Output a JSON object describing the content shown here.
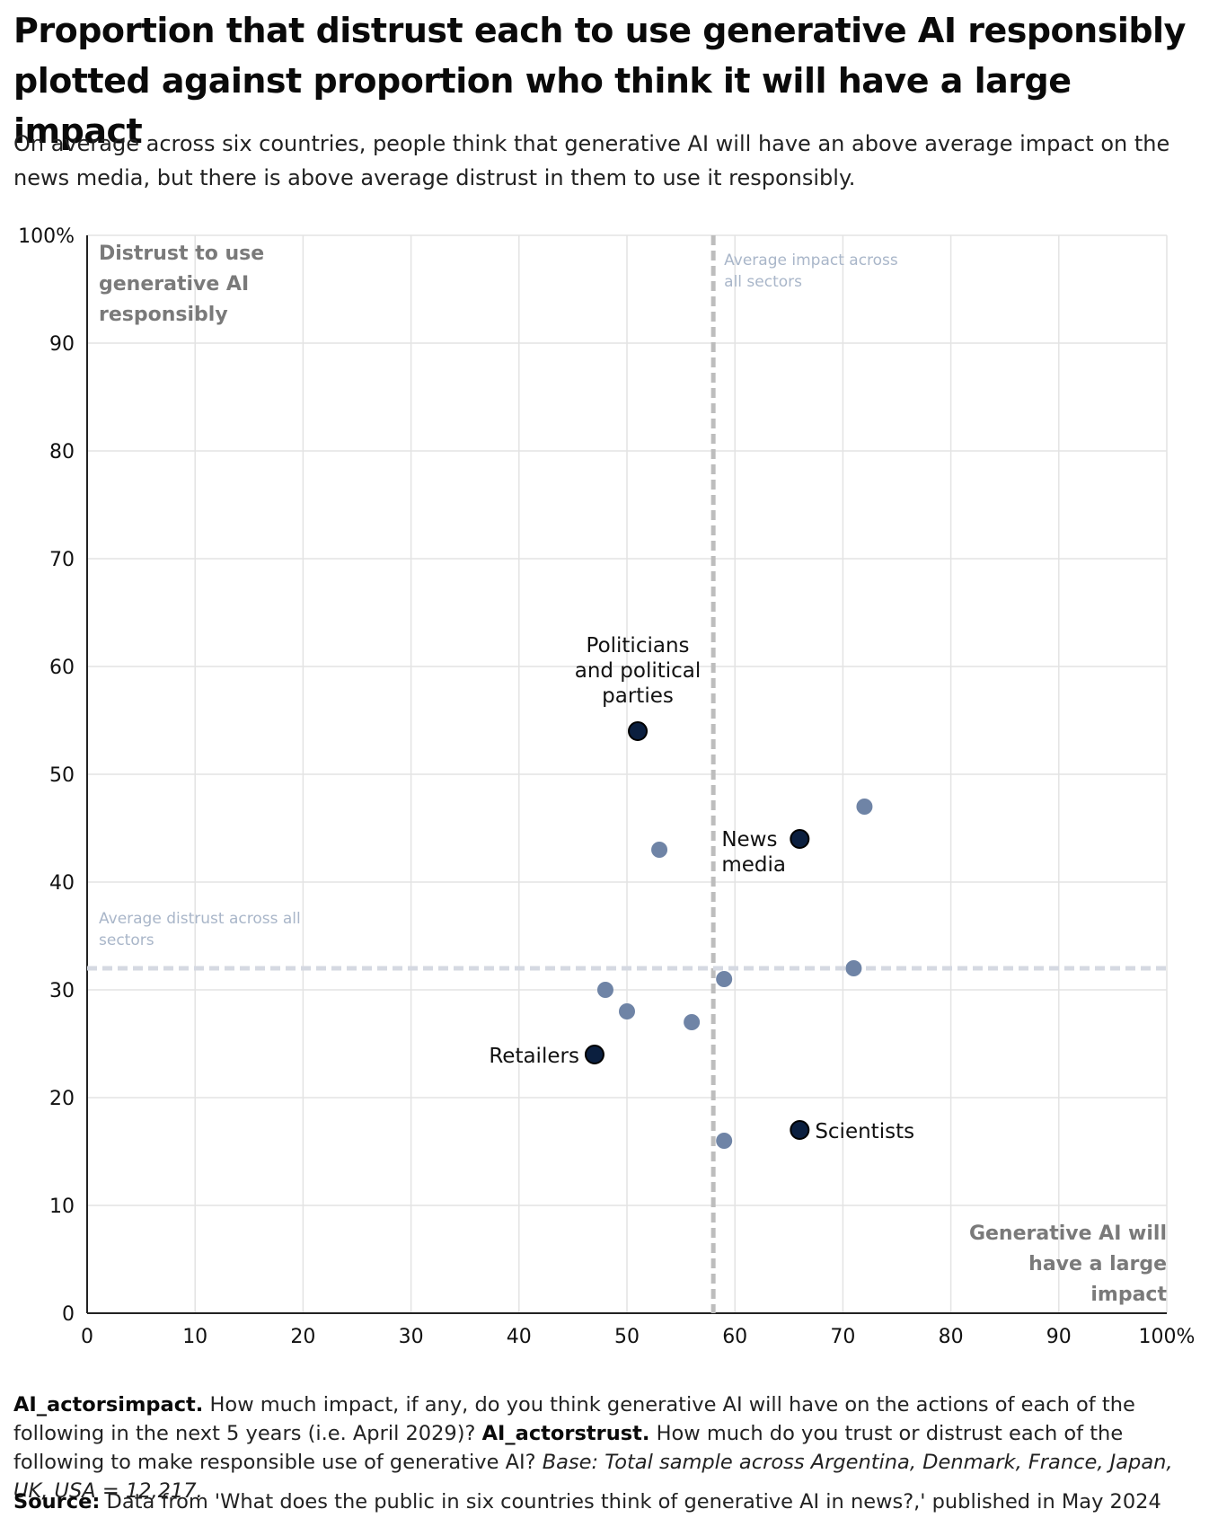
{
  "title": "Proportion that distrust each to use generative AI responsibly plotted against proportion who think it will have a large impact",
  "subtitle": "On average across six countries, people think that generative AI will have an above average impact on the news media, but there is above average distrust in them to use it responsibly.",
  "chart_data": {
    "type": "scatter",
    "x_axis": {
      "range": [
        0,
        100
      ],
      "ticks": [
        "0",
        "10",
        "20",
        "30",
        "40",
        "50",
        "60",
        "70",
        "80",
        "90",
        "100%"
      ]
    },
    "y_axis": {
      "range": [
        0,
        100
      ],
      "ticks": [
        "0",
        "10",
        "20",
        "30",
        "40",
        "50",
        "60",
        "70",
        "80",
        "90",
        "100%"
      ]
    },
    "grid": true,
    "y_axis_title": "Distrust to use generative AI responsibly",
    "x_axis_title": "Generative AI will have a large impact",
    "reference_lines": {
      "avg_impact": {
        "x": 58,
        "label": "Average impact across all sectors"
      },
      "avg_distrust": {
        "y": 32,
        "label": "Average distrust across all sectors"
      }
    },
    "colors": {
      "highlight": "#0b1f3f",
      "other": "#6f84a6",
      "avg_impact_line": "#bdbdbd",
      "avg_distrust_line": "#d5d9e2",
      "grid": "#e3e3e3",
      "axis": "#222222"
    },
    "points": [
      {
        "x": 51,
        "y": 54,
        "label": "Politicians and political parties",
        "highlight": true
      },
      {
        "x": 66,
        "y": 44,
        "label": "News media",
        "highlight": true
      },
      {
        "x": 47,
        "y": 24,
        "label": "Retailers",
        "highlight": true
      },
      {
        "x": 66,
        "y": 17,
        "label": "Scientists",
        "highlight": true
      },
      {
        "x": 72,
        "y": 47,
        "label": "",
        "highlight": false
      },
      {
        "x": 53,
        "y": 43,
        "label": "",
        "highlight": false
      },
      {
        "x": 71,
        "y": 32,
        "label": "",
        "highlight": false
      },
      {
        "x": 59,
        "y": 31,
        "label": "",
        "highlight": false
      },
      {
        "x": 48,
        "y": 30,
        "label": "",
        "highlight": false
      },
      {
        "x": 50,
        "y": 28,
        "label": "",
        "highlight": false
      },
      {
        "x": 56,
        "y": 27,
        "label": "",
        "highlight": false
      },
      {
        "x": 59,
        "y": 16,
        "label": "",
        "highlight": false
      }
    ]
  },
  "footnote": {
    "q1_code": "AI_actorsimpact.",
    "q1_text": " How much impact, if any, do you think generative AI will have on the actions of each of the following in the next 5 years (i.e. April 2029)? ",
    "q2_code": "AI_actorstrust.",
    "q2_text": " How much do you trust or distrust each of the following to make responsible use of generative AI? ",
    "base": "Base: Total sample across Argentina, Denmark, France, Japan, UK, USA = 12,217."
  },
  "source": {
    "label": "Source:",
    "text": " Data from 'What does the public in six countries think of generative AI in news?,' published in May 2024"
  }
}
